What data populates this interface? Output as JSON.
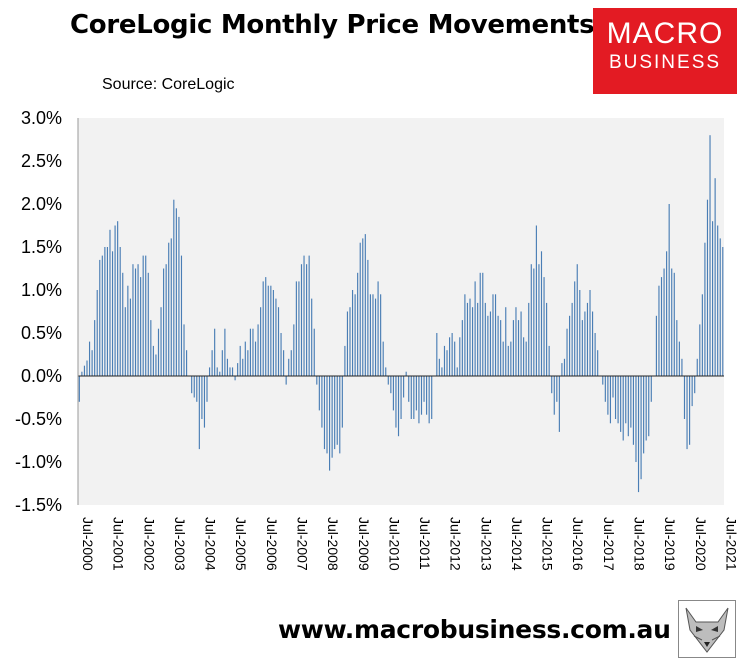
{
  "header": {
    "title": "CoreLogic Monthly Price Movements",
    "subtitle": "Source: CoreLogic"
  },
  "logo": {
    "line1": "MACRO",
    "line2": "BUSINESS",
    "color": "#e31b23"
  },
  "footer": {
    "website": "www.macrobusiness.com.au"
  },
  "chart_data": {
    "type": "bar",
    "title": "CoreLogic Monthly Price Movements",
    "xlabel": "",
    "ylabel": "",
    "ylim": [
      -1.5,
      3.0
    ],
    "y_ticks": [
      "3.0%",
      "2.5%",
      "2.0%",
      "1.5%",
      "1.0%",
      "0.5%",
      "0.0%",
      "-0.5%",
      "-1.0%",
      "-1.5%"
    ],
    "y_tick_values": [
      3.0,
      2.5,
      2.0,
      1.5,
      1.0,
      0.5,
      0.0,
      -0.5,
      -1.0,
      -1.5
    ],
    "x_tick_labels": [
      "Jul-2000",
      "Jul-2001",
      "Jul-2002",
      "Jul-2003",
      "Jul-2004",
      "Jul-2005",
      "Jul-2006",
      "Jul-2007",
      "Jul-2008",
      "Jul-2009",
      "Jul-2010",
      "Jul-2011",
      "Jul-2012",
      "Jul-2013",
      "Jul-2014",
      "Jul-2015",
      "Jul-2016",
      "Jul-2017",
      "Jul-2018",
      "Jul-2019",
      "Jul-2020",
      "Jul-2021"
    ],
    "grid": false,
    "legend": "none",
    "bar_color": "#4a7eb5",
    "plot_background": "#f2f2f2",
    "start_month": "Jul-2000",
    "values": [
      -0.3,
      0.05,
      0.12,
      0.18,
      0.4,
      0.3,
      0.65,
      1.0,
      1.35,
      1.4,
      1.5,
      1.5,
      1.7,
      1.45,
      1.75,
      1.8,
      1.5,
      1.2,
      0.8,
      1.05,
      0.9,
      1.3,
      1.25,
      1.3,
      1.15,
      1.4,
      1.4,
      1.2,
      0.65,
      0.35,
      0.25,
      0.55,
      0.8,
      1.25,
      1.3,
      1.55,
      1.6,
      2.05,
      1.95,
      1.85,
      1.4,
      0.6,
      0.3,
      0.0,
      -0.2,
      -0.25,
      -0.3,
      -0.85,
      -0.5,
      -0.6,
      -0.3,
      0.1,
      0.3,
      0.55,
      0.1,
      0.05,
      0.3,
      0.55,
      0.2,
      0.1,
      0.1,
      -0.05,
      0.15,
      0.35,
      0.2,
      0.4,
      0.3,
      0.55,
      0.55,
      0.4,
      0.6,
      0.8,
      1.1,
      1.15,
      1.05,
      1.05,
      1.0,
      0.9,
      0.8,
      0.5,
      0.3,
      -0.1,
      0.2,
      0.3,
      0.6,
      1.1,
      1.1,
      1.3,
      1.4,
      1.3,
      1.4,
      0.9,
      0.55,
      -0.1,
      -0.4,
      -0.6,
      -0.85,
      -0.9,
      -1.1,
      -0.95,
      -0.85,
      -0.8,
      -0.9,
      -0.6,
      0.35,
      0.75,
      0.8,
      1.0,
      0.95,
      1.2,
      1.55,
      1.6,
      1.65,
      1.35,
      0.95,
      0.95,
      0.9,
      1.1,
      0.95,
      0.4,
      0.1,
      -0.1,
      -0.2,
      -0.4,
      -0.6,
      -0.7,
      -0.5,
      -0.25,
      0.05,
      -0.3,
      -0.5,
      -0.5,
      -0.4,
      -0.55,
      -0.45,
      -0.3,
      -0.45,
      -0.55,
      -0.5,
      0.0,
      0.5,
      0.2,
      0.1,
      0.35,
      0.3,
      0.45,
      0.5,
      0.4,
      0.1,
      0.45,
      0.65,
      0.95,
      0.85,
      0.9,
      0.8,
      1.1,
      0.85,
      1.2,
      1.2,
      0.85,
      0.7,
      0.75,
      0.95,
      0.95,
      0.7,
      0.65,
      0.4,
      0.8,
      0.35,
      0.4,
      0.65,
      0.8,
      0.65,
      0.75,
      0.45,
      0.4,
      0.85,
      1.3,
      1.25,
      1.75,
      1.3,
      1.45,
      1.15,
      0.85,
      0.35,
      -0.2,
      -0.45,
      -0.3,
      -0.65,
      0.15,
      0.2,
      0.55,
      0.7,
      0.85,
      1.1,
      1.3,
      1.0,
      0.65,
      0.75,
      0.85,
      1.0,
      0.75,
      0.5,
      0.3,
      0.0,
      -0.1,
      -0.3,
      -0.45,
      -0.55,
      -0.25,
      -0.5,
      -0.55,
      -0.65,
      -0.75,
      -0.55,
      -0.7,
      -0.6,
      -0.8,
      -1.0,
      -1.35,
      -1.2,
      -0.9,
      -0.75,
      -0.7,
      -0.3,
      0.0,
      0.7,
      1.05,
      1.15,
      1.25,
      1.45,
      2.0,
      1.25,
      1.2,
      0.65,
      0.4,
      0.2,
      -0.5,
      -0.85,
      -0.8,
      -0.35,
      -0.2,
      0.2,
      0.6,
      0.95,
      1.55,
      2.05,
      2.8,
      1.8,
      2.3,
      1.75,
      1.6,
      1.5
    ]
  }
}
